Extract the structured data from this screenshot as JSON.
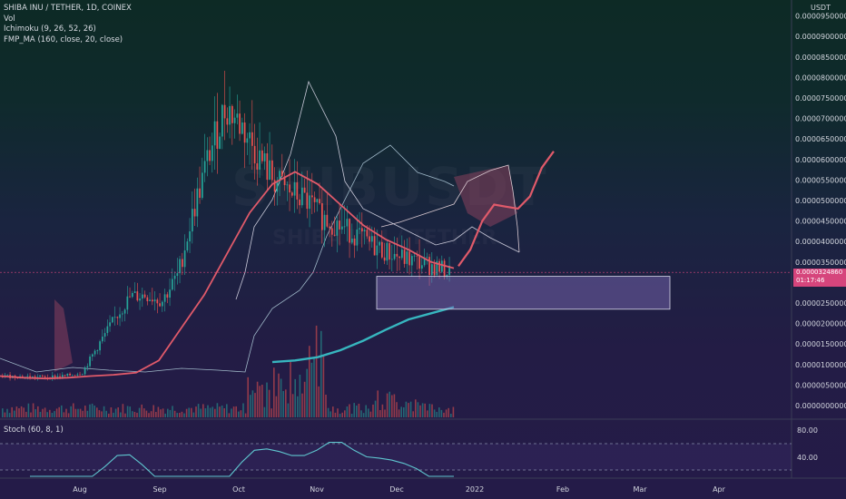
{
  "legend": {
    "symbol": "SHIBA INU / TETHER, 1D, COINEX",
    "vol": "Vol",
    "ichimoku": "Ichimoku (9, 26, 52, 26)",
    "ma": "FMP_MA (160, close, 20, close)"
  },
  "watermark": {
    "main": "SHIBUSDT",
    "sub": "SHIBA INU / TETHER"
  },
  "last_price": {
    "price": "0.0000324860",
    "countdown": "01:17:46"
  },
  "stoch_label": "Stoch (60, 8, 1)",
  "price_axis_title": "USDT",
  "colors": {
    "price_line": "#e05a6a",
    "ma_teal": "#37b6bf",
    "cloud": "#8a4a63",
    "box_border": "#d8d8ea",
    "stoch_line": "#5fc6cf",
    "bull_candle": "#26a69a",
    "bear_candle": "#ef5350"
  },
  "chart_data": [
    {
      "type": "line",
      "title": "SHIBA INU / TETHER, 1D, COINEX",
      "ylabel": "USDT",
      "ylim": [
        0,
        9.5e-05
      ],
      "y_ticks": [
        "0.0000000000",
        "0.0000050000",
        "0.0000100000",
        "0.0000150000",
        "0.0000200000",
        "0.0000250000",
        "0.0000300000",
        "0.0000350000",
        "0.0000400000",
        "0.0000450000",
        "0.0000500000",
        "0.0000550000",
        "0.0000600000",
        "0.0000650000",
        "0.0000700000",
        "0.0000750000",
        "0.0000800000",
        "0.0000850000",
        "0.0000900000",
        "0.0000950000"
      ],
      "x_ticks": [
        "Aug",
        "Sep",
        "Oct",
        "Nov",
        "Dec",
        "2022",
        "Feb",
        "Mar",
        "Apr"
      ],
      "series": [
        {
          "kind": "price",
          "values": [
            7.2e-06,
            7.1e-06,
            6.9e-06,
            7e-06,
            7.2e-06,
            8.1e-06,
            1.47e-05,
            2.1e-05,
            2.65e-05,
            2.7e-05,
            2.55e-05,
            3.2e-05,
            4.8e-05,
            6.2e-05,
            7.3e-05,
            6.8e-05,
            6.1e-05,
            5.5e-05,
            5.2e-05,
            5e-05,
            4.6e-05,
            4.4e-05,
            4.2e-05,
            3.95e-05,
            3.75e-05,
            3.6e-05,
            3.5e-05,
            3.39e-05,
            3.2486e-05
          ]
        },
        {
          "kind": "projection",
          "values": [
            3.4e-05,
            3.8e-05,
            4.5e-05,
            4.9e-05,
            4.85e-05,
            4.8e-05,
            5.1e-05,
            5.8e-05,
            6.2e-05
          ]
        },
        {
          "kind": "ma",
          "values": [
            7.2e-06,
            6.8e-06,
            6.6e-06,
            6.8e-06,
            7.2e-06,
            7.5e-06,
            8e-06,
            1.1e-05,
            1.9e-05,
            2.7e-05,
            3.7e-05,
            4.7e-05,
            5.4e-05,
            5.7e-05,
            5.4e-05,
            4.9e-05,
            4.4e-05,
            4.05e-05,
            3.8e-05,
            3.5e-05,
            3.35e-05
          ]
        },
        {
          "kind": "ma-teal",
          "values": [
            1.06e-05,
            1.1e-05,
            1.18e-05,
            1.35e-05,
            1.58e-05,
            1.85e-05,
            2.1e-05,
            2.25e-05,
            2.4e-05
          ]
        }
      ],
      "support_zone": [
        2.35e-05,
        3.15e-05
      ],
      "last_price": "0.0000324860"
    },
    {
      "type": "line",
      "title": "Stoch (60, 8, 1)",
      "y_ticks": [
        "80.00",
        "40.00"
      ],
      "series": [
        {
          "name": "Stoch",
          "values": [
            5,
            6,
            7,
            7,
            9,
            22,
            45,
            62,
            63,
            48,
            22,
            13,
            12,
            14,
            14,
            17,
            27,
            52,
            70,
            72,
            68,
            62,
            62,
            70,
            82,
            82,
            70,
            60,
            58,
            55,
            50,
            42,
            30,
            12,
            2
          ]
        }
      ]
    }
  ]
}
